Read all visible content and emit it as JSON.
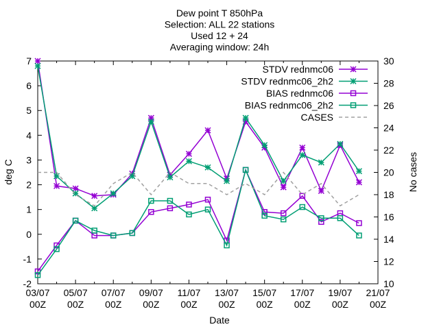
{
  "chart_data": {
    "type": "line",
    "title_lines": [
      "Dew point T 850hPa",
      "Selection: ALL      22 stations",
      "Used 12 + 24",
      "Averaging window: 24h"
    ],
    "xlabel": "Date",
    "ylabel": "deg C",
    "y2label": "No cases",
    "x_ticks": [
      {
        "x": 0,
        "l1": "03/07",
        "l2": "00Z"
      },
      {
        "x": 2,
        "l1": "05/07",
        "l2": "00Z"
      },
      {
        "x": 4,
        "l1": "07/07",
        "l2": "00Z"
      },
      {
        "x": 6,
        "l1": "09/07",
        "l2": "00Z"
      },
      {
        "x": 8,
        "l1": "11/07",
        "l2": "00Z"
      },
      {
        "x": 10,
        "l1": "13/07",
        "l2": "00Z"
      },
      {
        "x": 12,
        "l1": "15/07",
        "l2": "00Z"
      },
      {
        "x": 14,
        "l1": "17/07",
        "l2": "00Z"
      },
      {
        "x": 16,
        "l1": "19/07",
        "l2": "00Z"
      },
      {
        "x": 18,
        "l1": "21/07",
        "l2": "00Z"
      }
    ],
    "xlim": [
      0,
      18
    ],
    "ylim": [
      -2,
      7
    ],
    "y_ticks": [
      -2,
      -1,
      0,
      1,
      2,
      3,
      4,
      5,
      6,
      7
    ],
    "y2lim": [
      10,
      30
    ],
    "y2_ticks": [
      10,
      12,
      14,
      16,
      18,
      20,
      22,
      24,
      26,
      28,
      30
    ],
    "legend_position": "top-right",
    "grid": false,
    "series": [
      {
        "name": "STDV rednmc06",
        "color": "#9400d3",
        "marker": "star",
        "axis": "y1",
        "dash": false,
        "x": [
          0,
          1,
          2,
          3,
          4,
          5,
          6,
          7,
          8,
          9,
          10,
          11,
          12,
          13,
          14,
          15,
          16,
          17
        ],
        "y": [
          7.0,
          1.95,
          1.85,
          1.55,
          1.6,
          2.45,
          4.7,
          2.4,
          3.25,
          4.2,
          2.25,
          4.55,
          3.5,
          1.9,
          3.5,
          1.75,
          3.6,
          2.1
        ]
      },
      {
        "name": "STDV rednmc06_2h2",
        "color": "#009e73",
        "marker": "star",
        "axis": "y1",
        "dash": false,
        "x": [
          0,
          1,
          2,
          3,
          4,
          5,
          6,
          7,
          8,
          9,
          10,
          11,
          12,
          13,
          14,
          15,
          16,
          17
        ],
        "y": [
          6.8,
          2.35,
          1.65,
          1.05,
          1.65,
          2.35,
          4.55,
          2.3,
          2.95,
          2.7,
          2.15,
          4.7,
          3.6,
          2.15,
          3.2,
          2.9,
          3.65,
          2.55
        ]
      },
      {
        "name": "BIAS rednmc06",
        "color": "#9400d3",
        "marker": "square",
        "axis": "y1",
        "dash": false,
        "x": [
          0,
          1,
          2,
          3,
          4,
          5,
          6,
          7,
          8,
          9,
          10,
          11,
          12,
          13,
          14,
          15,
          16,
          17
        ],
        "y": [
          -1.5,
          -0.45,
          0.55,
          -0.05,
          -0.05,
          0.05,
          0.9,
          1.05,
          1.2,
          1.4,
          -0.25,
          2.6,
          0.9,
          0.85,
          1.55,
          0.5,
          0.85,
          0.45
        ]
      },
      {
        "name": "BIAS rednmc06_2h2",
        "color": "#009e73",
        "marker": "square",
        "axis": "y1",
        "dash": false,
        "x": [
          0,
          1,
          2,
          3,
          4,
          5,
          6,
          7,
          8,
          9,
          10,
          11,
          12,
          13,
          14,
          15,
          16,
          17
        ],
        "y": [
          -1.65,
          -0.6,
          0.55,
          0.15,
          -0.05,
          0.05,
          1.35,
          1.35,
          0.8,
          1.0,
          -0.45,
          2.6,
          0.75,
          0.6,
          1.1,
          0.65,
          0.65,
          -0.05
        ]
      },
      {
        "name": "CASES",
        "color": "#a0a0a0",
        "marker": "none",
        "axis": "y2",
        "dash": true,
        "x": [
          0,
          1,
          2,
          3,
          4,
          5,
          6,
          7,
          8,
          9,
          10,
          11,
          12,
          13,
          14,
          15,
          16,
          17
        ],
        "y": [
          20,
          20,
          18,
          17,
          19,
          20,
          18,
          20,
          19,
          19,
          18,
          19,
          18,
          20,
          18,
          19,
          17,
          18
        ]
      }
    ]
  }
}
